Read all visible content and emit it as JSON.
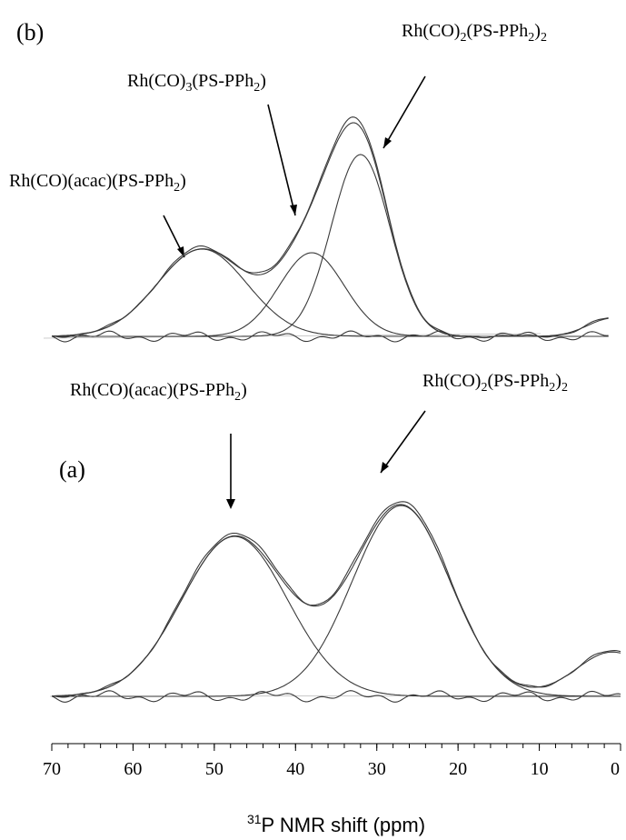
{
  "chart_data": {
    "type": "line",
    "xlabel_sup": "31",
    "xlabel": "P NMR shift (ppm)",
    "xlim": [
      70,
      0
    ],
    "x_reversed": true,
    "xticks": [
      70,
      60,
      50,
      40,
      30,
      20,
      10,
      0
    ],
    "minor_tick_step": 2,
    "panels": [
      {
        "label": "(b)",
        "annotations": [
          {
            "text": "Rh(CO)(acac)(PS-PPh",
            "sub": "2",
            "tail": ")",
            "points_to_ppm": 53
          },
          {
            "text": "Rh(CO)",
            "sub": "3",
            "tail": "(PS-PPh",
            "sub2": "2",
            "tail2": ")",
            "points_to_ppm": 38.5
          },
          {
            "text": "Rh(CO)",
            "sub": "2",
            "tail": "(PS-PPh",
            "sub2": "2",
            "tail2": ")",
            "sub3": "2",
            "points_to_ppm": 31
          }
        ],
        "peaks": [
          {
            "center_ppm": 51.5,
            "height": 0.48,
            "width_ppm": 5.5
          },
          {
            "center_ppm": 38,
            "height": 0.46,
            "width_ppm": 4.0
          },
          {
            "center_ppm": 32,
            "height": 1.0,
            "width_ppm": 3.6
          },
          {
            "center_ppm": 1,
            "height": 0.1,
            "width_ppm": 3.0
          }
        ]
      },
      {
        "label": "(a)",
        "annotations": [
          {
            "text": "Rh(CO)(acac)(PS-PPh",
            "sub": "2",
            "tail": ")",
            "points_to_ppm": 48
          },
          {
            "text": "Rh(CO)",
            "sub": "2",
            "tail": "(PS-PPh",
            "sub2": "2",
            "tail2": ")",
            "sub3": "2",
            "points_to_ppm": 30
          }
        ],
        "peaks": [
          {
            "center_ppm": 47.5,
            "height": 0.83,
            "width_ppm": 6.5
          },
          {
            "center_ppm": 27,
            "height": 0.99,
            "width_ppm": 6.0
          },
          {
            "center_ppm": 1,
            "height": 0.23,
            "width_ppm": 4.5
          }
        ]
      }
    ]
  }
}
